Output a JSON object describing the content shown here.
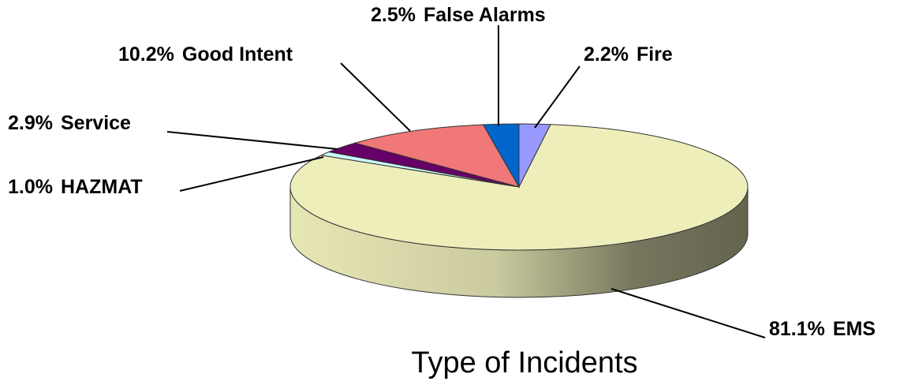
{
  "chart_data": {
    "type": "pie3d",
    "title": "Type of Incidents",
    "categories": [
      "Fire",
      "EMS",
      "HAZMAT",
      "Service",
      "Good Intent",
      "False Alarms"
    ],
    "values": [
      2.2,
      81.1,
      1.0,
      2.9,
      10.2,
      2.5
    ],
    "value_labels": [
      "2.2%",
      "81.1%",
      "1.0%",
      "2.9%",
      "10.2%",
      "2.5%"
    ],
    "colors": [
      "#9999ff",
      "#eeeebb",
      "#ccffff",
      "#660066",
      "#f07878",
      "#0066cc"
    ]
  }
}
